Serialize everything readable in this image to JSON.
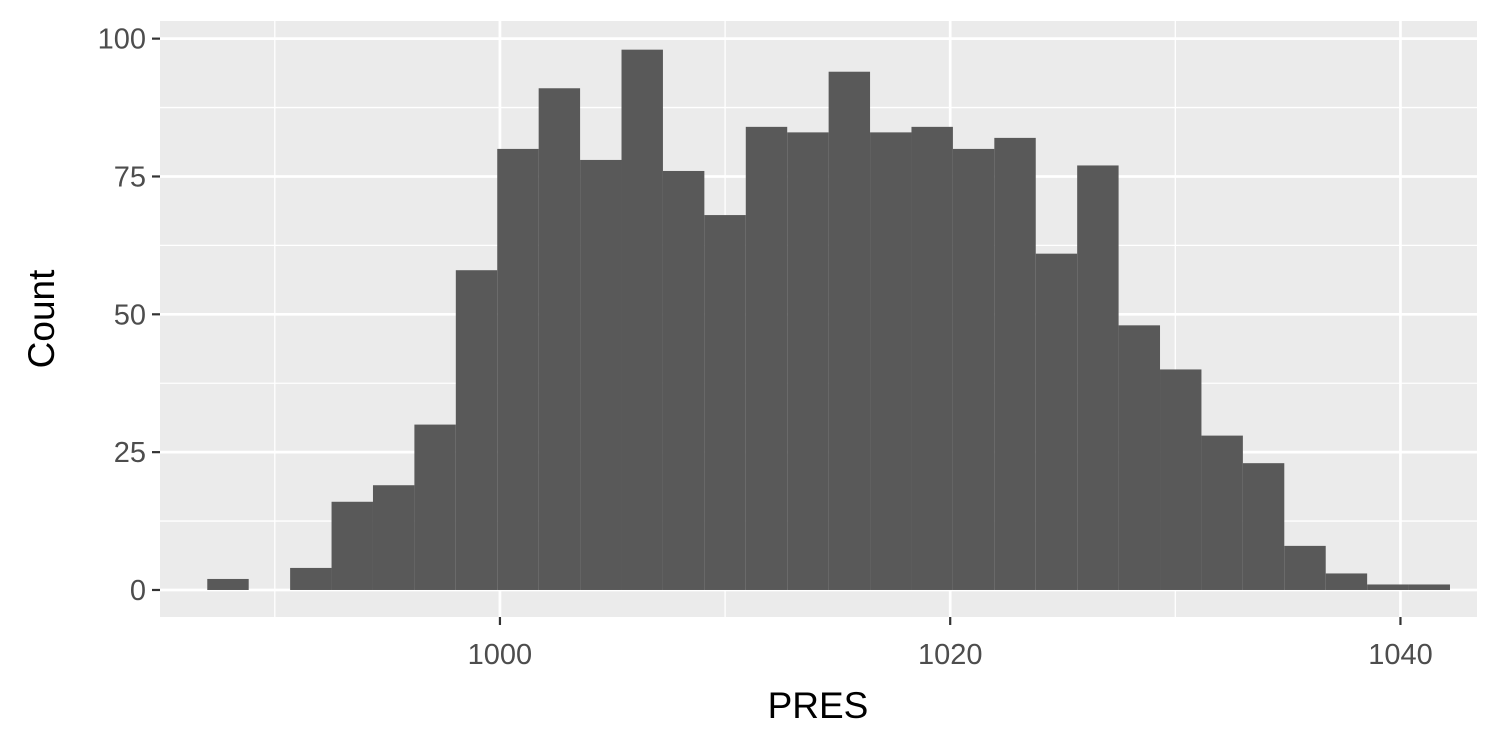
{
  "chart_data": {
    "type": "bar",
    "subtype": "histogram",
    "xlabel": "PRES",
    "ylabel": "Count",
    "xlim": [
      984.9,
      1043.4
    ],
    "ylim": [
      -4.9,
      103.2
    ],
    "x_ticks": [
      {
        "value": 1000,
        "label": "1000"
      },
      {
        "value": 1020,
        "label": "1020"
      },
      {
        "value": 1040,
        "label": "1040"
      }
    ],
    "y_ticks": [
      {
        "value": 0,
        "label": "0"
      },
      {
        "value": 25,
        "label": "25"
      },
      {
        "value": 50,
        "label": "50"
      },
      {
        "value": 75,
        "label": "75"
      },
      {
        "value": 100,
        "label": "100"
      }
    ],
    "bin_width": 1.84,
    "first_bin_start": 987.0,
    "counts": [
      2,
      0,
      4,
      16,
      19,
      30,
      58,
      80,
      91,
      78,
      98,
      76,
      68,
      84,
      83,
      94,
      83,
      84,
      80,
      82,
      61,
      77,
      48,
      40,
      28,
      23,
      8,
      3,
      1,
      1
    ],
    "grid": true,
    "colors": {
      "panel": "#ebebeb",
      "grid": "#ffffff",
      "bar": "#595959",
      "tick": "#333333"
    }
  }
}
